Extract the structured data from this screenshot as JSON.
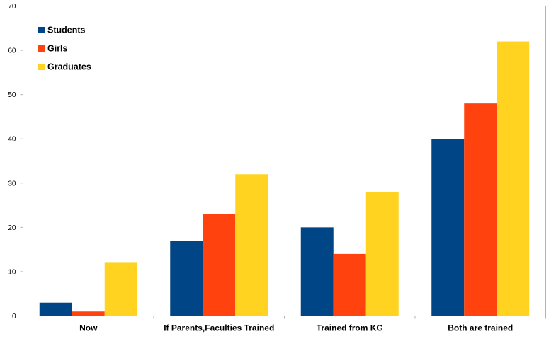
{
  "chart_data": {
    "type": "bar",
    "categories": [
      "Now",
      "If Parents,Faculties Trained",
      "Trained from KG",
      "Both are trained"
    ],
    "series": [
      {
        "name": "Students",
        "color": "#004586",
        "values": [
          3,
          17,
          20,
          40
        ]
      },
      {
        "name": "Girls",
        "color": "#FF420E",
        "values": [
          1,
          23,
          14,
          48
        ]
      },
      {
        "name": "Graduates",
        "color": "#FFD320",
        "values": [
          12,
          32,
          28,
          62
        ]
      }
    ],
    "yticks": [
      "0",
      "10",
      "20",
      "30",
      "40",
      "50",
      "60",
      "70"
    ],
    "ylim": [
      0,
      70
    ],
    "grid": false,
    "legend_position": "top-left",
    "title": "",
    "xlabel": "",
    "ylabel": ""
  }
}
